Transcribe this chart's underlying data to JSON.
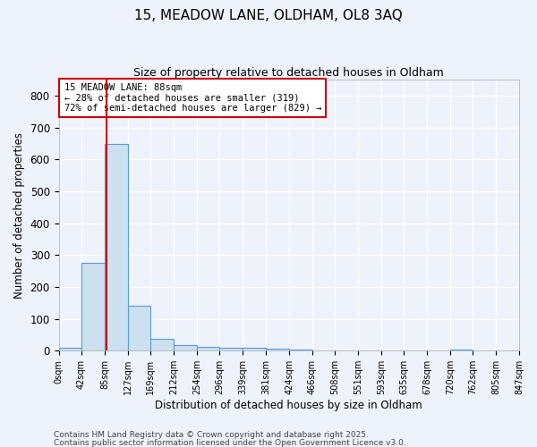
{
  "title": "15, MEADOW LANE, OLDHAM, OL8 3AQ",
  "subtitle": "Size of property relative to detached houses in Oldham",
  "xlabel": "Distribution of detached houses by size in Oldham",
  "ylabel": "Number of detached properties",
  "property_size": 88,
  "bar_values": [
    8,
    275,
    648,
    142,
    38,
    18,
    12,
    10,
    10,
    7,
    4,
    0,
    0,
    0,
    0,
    0,
    0,
    5,
    0,
    0
  ],
  "bin_edges": [
    0,
    42,
    85,
    127,
    169,
    212,
    254,
    296,
    339,
    381,
    424,
    466,
    508,
    551,
    593,
    635,
    678,
    720,
    762,
    805,
    847
  ],
  "bin_labels": [
    "0sqm",
    "42sqm",
    "85sqm",
    "127sqm",
    "169sqm",
    "212sqm",
    "254sqm",
    "296sqm",
    "339sqm",
    "381sqm",
    "424sqm",
    "466sqm",
    "508sqm",
    "551sqm",
    "593sqm",
    "635sqm",
    "678sqm",
    "720sqm",
    "762sqm",
    "805sqm",
    "847sqm"
  ],
  "bar_color": "#cce0f0",
  "bar_edge_color": "#5b9bd5",
  "vline_color": "#cc0000",
  "vline_x": 88,
  "annotation_text": "15 MEADOW LANE: 88sqm\n← 28% of detached houses are smaller (319)\n72% of semi-detached houses are larger (829) →",
  "annotation_box_color": "#ffffff",
  "annotation_box_edge": "#cc0000",
  "ylim": [
    0,
    850
  ],
  "yticks": [
    0,
    100,
    200,
    300,
    400,
    500,
    600,
    700,
    800
  ],
  "footer1": "Contains HM Land Registry data © Crown copyright and database right 2025.",
  "footer2": "Contains public sector information licensed under the Open Government Licence v3.0.",
  "background_color": "#eef2fb",
  "axes_background": "#eef2fb",
  "grid_color": "#ffffff"
}
